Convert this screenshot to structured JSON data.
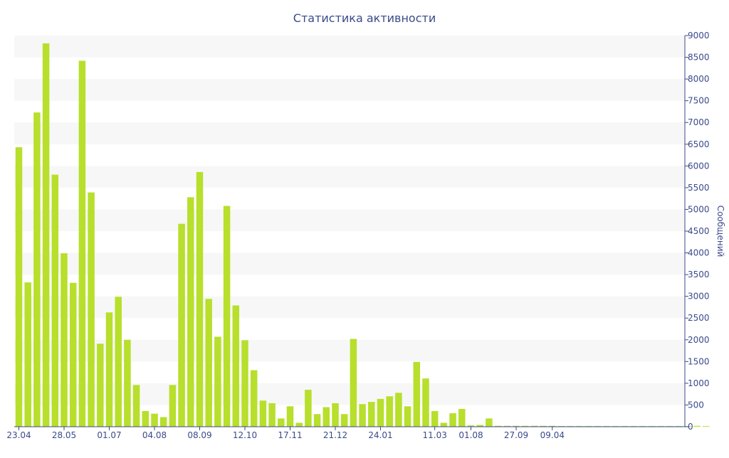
{
  "chart_data": {
    "type": "bar",
    "title": "Статистика активности",
    "xlabel": "",
    "ylabel": "Сообщений",
    "ylim": [
      0,
      9000
    ],
    "y_ticks": [
      0,
      500,
      1000,
      1500,
      2000,
      2500,
      3000,
      3500,
      4000,
      4500,
      5000,
      5500,
      6000,
      6500,
      7000,
      7500,
      8000,
      8500,
      9000
    ],
    "y_axis_position": "right",
    "grid": "alternating horizontal bands",
    "bar_color": "#b7df2c",
    "band_color": "#f7f7f7",
    "text_color": "#3a4a8a",
    "x_tick_labels": [
      {
        "label": "23.04",
        "index": 0
      },
      {
        "label": "28.05",
        "index": 5
      },
      {
        "label": "01.07",
        "index": 10
      },
      {
        "label": "04.08",
        "index": 15
      },
      {
        "label": "08.09",
        "index": 20
      },
      {
        "label": "12.10",
        "index": 25
      },
      {
        "label": "17.11",
        "index": 30
      },
      {
        "label": "21.12",
        "index": 35
      },
      {
        "label": "24.01",
        "index": 40
      },
      {
        "label": "11.03",
        "index": 46
      },
      {
        "label": "01.08",
        "index": 50
      },
      {
        "label": "27.09",
        "index": 55
      },
      {
        "label": "09.04",
        "index": 59
      }
    ],
    "values": [
      6430,
      3320,
      7230,
      8820,
      5800,
      3990,
      3310,
      8420,
      5390,
      1910,
      2630,
      2990,
      2000,
      960,
      360,
      300,
      220,
      960,
      4670,
      5280,
      5860,
      2940,
      2070,
      5080,
      2790,
      1990,
      1300,
      600,
      540,
      190,
      470,
      90,
      850,
      290,
      450,
      540,
      290,
      2020,
      520,
      570,
      640,
      700,
      780,
      470,
      1490,
      1110,
      360,
      90,
      310,
      410,
      30,
      40,
      190,
      20,
      20,
      20,
      20,
      20,
      20,
      20,
      15,
      15,
      15,
      15,
      15,
      15,
      15,
      15,
      15,
      15,
      15,
      15,
      15,
      15,
      15,
      20,
      15
    ]
  }
}
